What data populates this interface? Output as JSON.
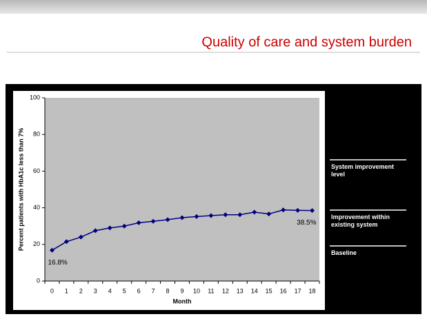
{
  "slide": {
    "title": "Quality of care and system burden"
  },
  "chart_data": {
    "type": "line",
    "y_label": "Percent patients with HbA1c less than 7%",
    "x_label": "Month",
    "categories": [
      "0",
      "1",
      "2",
      "3",
      "4",
      "5",
      "6",
      "7",
      "8",
      "9",
      "10",
      "11",
      "12",
      "13",
      "14",
      "15",
      "16",
      "17",
      "18"
    ],
    "series": [
      {
        "name": null,
        "color": "#000080",
        "values": [
          16.8,
          21.5,
          24,
          27.5,
          29,
          30,
          31.8,
          32.6,
          33.5,
          34.6,
          35.2,
          35.7,
          36.2,
          36.2,
          37.6,
          36.6,
          38.8,
          38.6,
          38.5
        ],
        "value_labels": [
          "16.8%",
          null,
          null,
          null,
          null,
          null,
          null,
          null,
          null,
          null,
          null,
          null,
          null,
          null,
          null,
          null,
          null,
          null,
          "38.5%"
        ]
      }
    ],
    "ylim": [
      0,
      100
    ],
    "yticks": [
      0,
      20,
      40,
      60,
      80,
      100
    ],
    "plot_background": "#c0c0c0",
    "annotations": [
      "System improvement level",
      "Improvement within existing system",
      "Baseline"
    ]
  }
}
